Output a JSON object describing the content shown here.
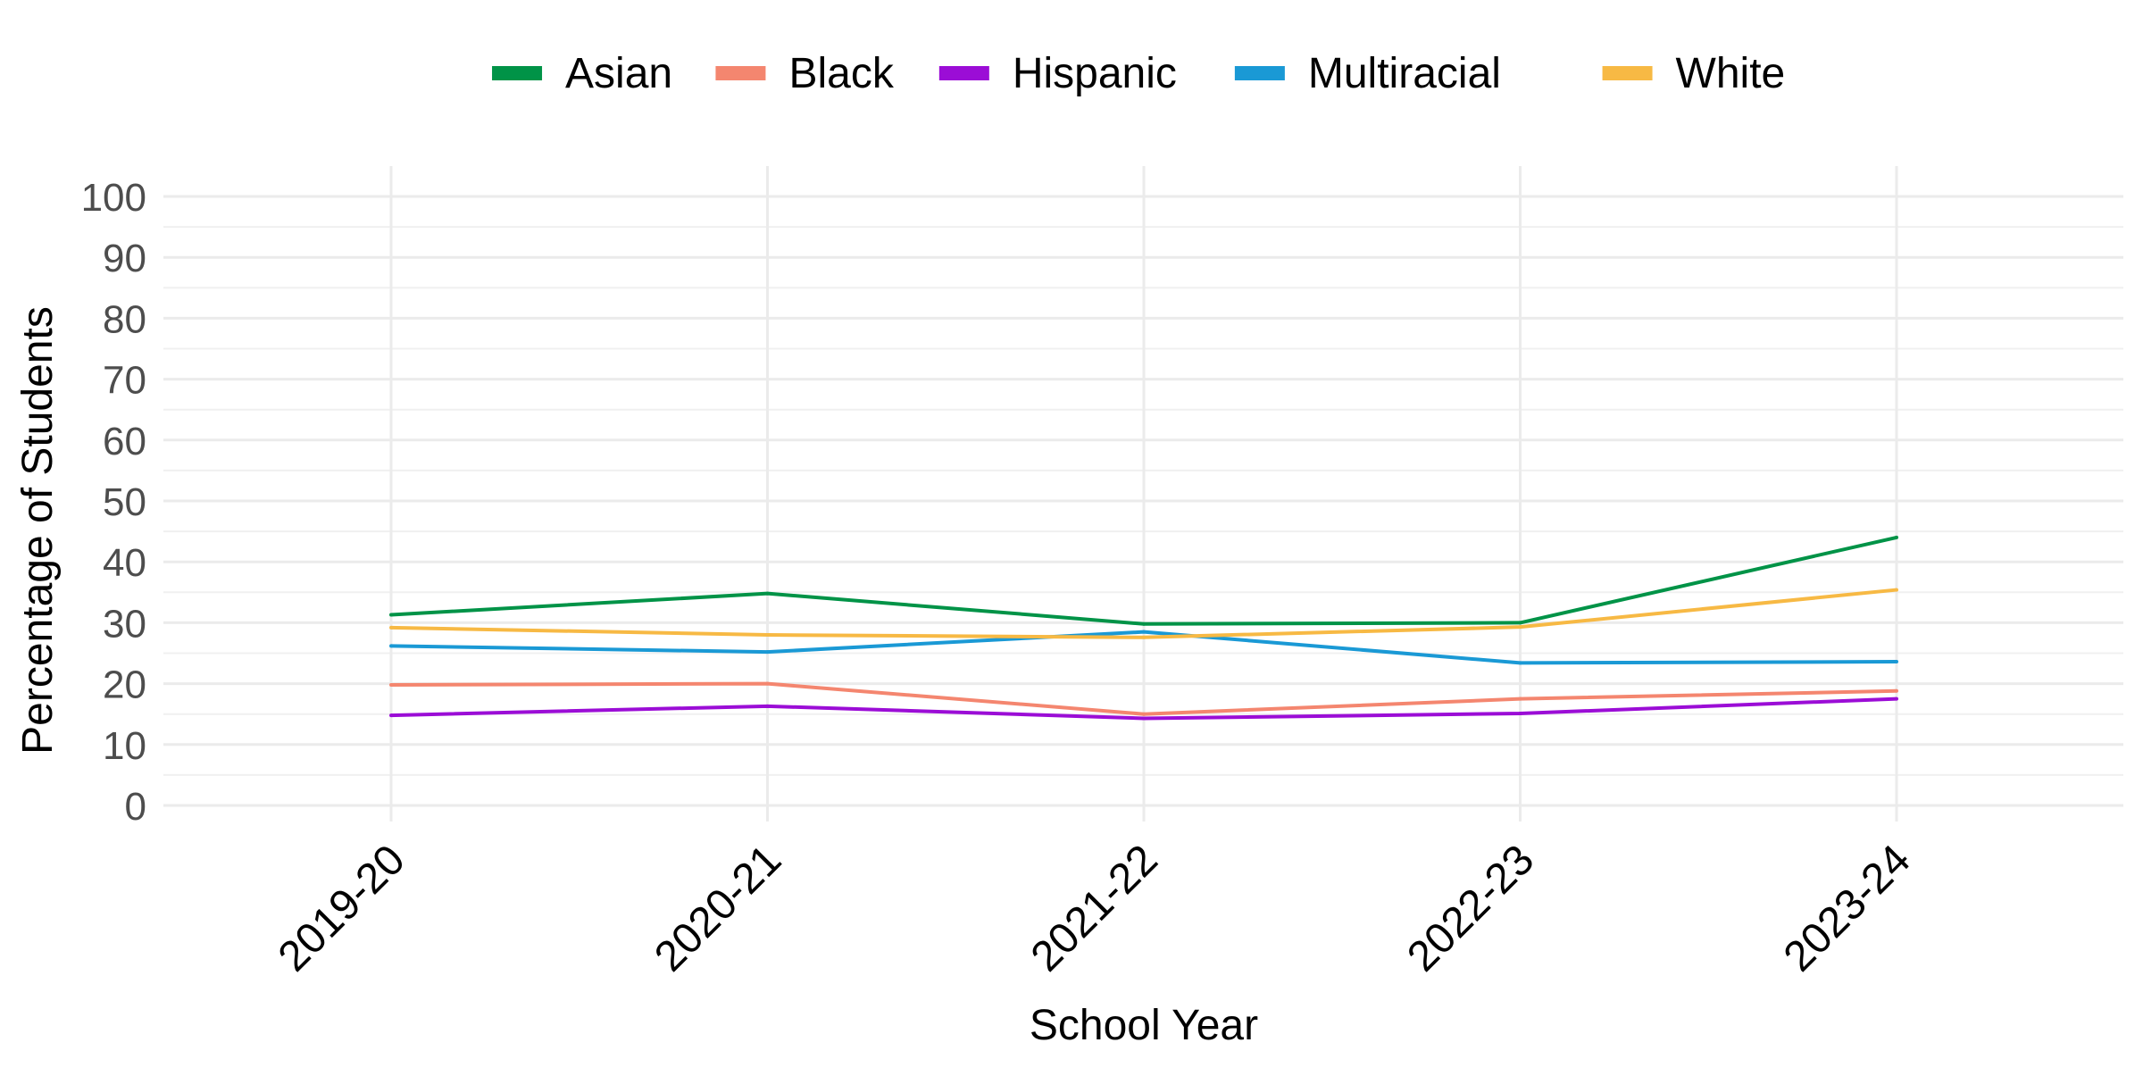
{
  "chart_data": {
    "type": "line",
    "title": "",
    "xlabel": "School Year",
    "ylabel": "Percentage of Students",
    "categories": [
      "2019-20",
      "2020-21",
      "2021-22",
      "2022-23",
      "2023-24"
    ],
    "ylim": [
      0,
      100
    ],
    "yticks": [
      0,
      10,
      20,
      30,
      40,
      50,
      60,
      70,
      80,
      90,
      100
    ],
    "grid": true,
    "legend_position": "top",
    "series": [
      {
        "name": "Asian",
        "color": "#009347",
        "values": [
          31.3,
          34.8,
          29.8,
          30.0,
          44.0
        ]
      },
      {
        "name": "Black",
        "color": "#F4866F",
        "values": [
          19.8,
          20.0,
          15.0,
          17.5,
          18.8
        ]
      },
      {
        "name": "Hispanic",
        "color": "#9B0DD6",
        "values": [
          14.8,
          16.3,
          14.3,
          15.1,
          17.5
        ]
      },
      {
        "name": "Multiracial",
        "color": "#1A99D5",
        "values": [
          26.2,
          25.2,
          28.5,
          23.4,
          23.6
        ]
      },
      {
        "name": "White",
        "color": "#F7B944",
        "values": [
          29.2,
          28.0,
          27.6,
          29.3,
          35.4
        ]
      }
    ]
  }
}
